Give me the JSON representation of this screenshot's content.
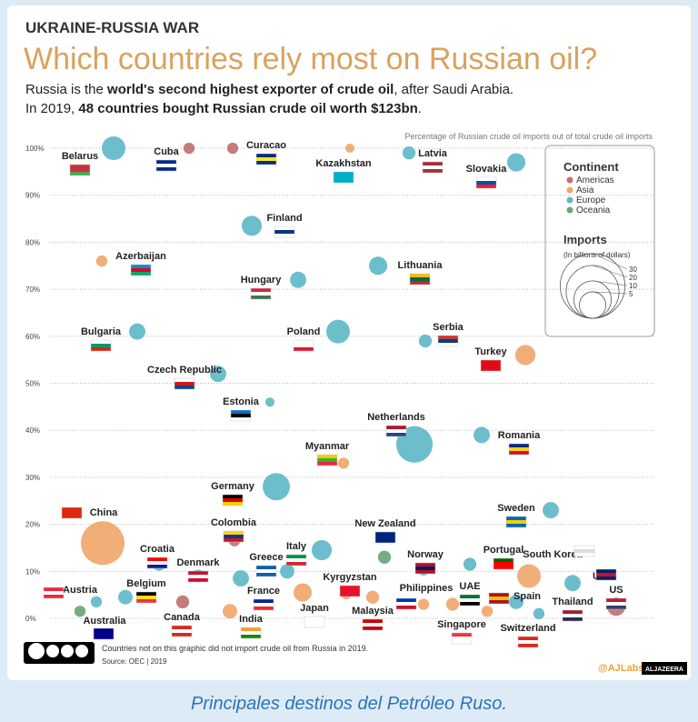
{
  "chart_data": {
    "type": "bubble",
    "kicker": "UKRAINE-RUSSIA WAR",
    "title": "Which countries rely most on Russian oil?",
    "subtitle_lines": [
      [
        {
          "text": "Russia is the "
        },
        {
          "text": "world's second highest exporter of crude oil",
          "bold": true
        },
        {
          "text": ", after Saudi Arabia."
        }
      ],
      [
        {
          "text": "In 2019, "
        },
        {
          "text": "48 countries bought Russian crude oil worth $123bn",
          "bold": true
        },
        {
          "text": "."
        }
      ]
    ],
    "y_axis_note": "Percentage of Russian crude oil imports out of total crude oil imports",
    "ylim": [
      0,
      100
    ],
    "yticks": [
      {
        "value": 0,
        "label": "0%"
      },
      {
        "value": 10,
        "label": "10%"
      },
      {
        "value": 20,
        "label": "20%"
      },
      {
        "value": 30,
        "label": "30%"
      },
      {
        "value": 40,
        "label": "40%"
      },
      {
        "value": 50,
        "label": "50%"
      },
      {
        "value": 60,
        "label": "60%"
      },
      {
        "value": 70,
        "label": "70%"
      },
      {
        "value": 80,
        "label": "80%"
      },
      {
        "value": 90,
        "label": "90%"
      },
      {
        "value": 100,
        "label": "100%"
      }
    ],
    "grid": true,
    "legend_title": "Continent",
    "series": [
      {
        "name": "Americas",
        "color": "#c0716f",
        "countries": [
          "Cuba",
          "Curacao",
          "Colombia",
          "Canada",
          "US"
        ],
        "values": [
          100,
          100,
          16.5,
          3.5,
          2.5
        ],
        "sizes": [
          0.9,
          0.9,
          0.9,
          1.2,
          2.4
        ]
      },
      {
        "name": "Asia",
        "color": "#f0a76b",
        "countries": [
          "Kazakhstan",
          "Azerbaijan",
          "Turkey",
          "Myanmar",
          "China",
          "South Korea",
          "Kyrgyzstan",
          "Japan",
          "Philippines",
          "UAE",
          "India",
          "Malaysia",
          "Singapore",
          "Thailand"
        ],
        "values": [
          100,
          76,
          56,
          33,
          16,
          9,
          5,
          5.5,
          3,
          3,
          1.5,
          4.5,
          1.5,
          0.5
        ],
        "sizes": [
          0.6,
          0.9,
          2.9,
          0.9,
          13.6,
          4.0,
          0.6,
          2.4,
          0.9,
          1.2,
          1.5,
          1.2,
          0.9,
          0.9
        ]
      },
      {
        "name": "Europe",
        "color": "#5fb8c8",
        "countries": [
          "Belarus",
          "Latvia",
          "Slovakia",
          "Finland",
          "Lithuania",
          "Hungary",
          "Bulgaria",
          "Poland",
          "Serbia",
          "Czech Republic",
          "Estonia",
          "Netherlands",
          "Romania",
          "Germany",
          "Croatia",
          "Italy",
          "Sweden",
          "Denmark",
          "Greece",
          "Norway",
          "Portugal",
          "Belgium",
          "Austria",
          "France",
          "Spain",
          "UK",
          "Switzerland"
        ],
        "values": [
          100,
          99,
          97,
          83.5,
          75,
          72,
          61,
          61,
          59,
          52,
          46,
          37,
          39,
          28,
          11.5,
          14.5,
          23,
          9,
          10,
          10.5,
          11.5,
          4.5,
          3.5,
          8.5,
          3.5,
          7.5,
          1
        ],
        "sizes": [
          4.0,
          1.2,
          2.4,
          2.9,
          2.4,
          1.9,
          1.9,
          4.0,
          1.2,
          1.9,
          0.6,
          9.5,
          1.9,
          5.3,
          1.2,
          2.9,
          1.9,
          1.2,
          1.5,
          1.2,
          1.2,
          1.5,
          0.9,
          1.9,
          1.5,
          1.9,
          0.9
        ]
      },
      {
        "name": "Oceania",
        "color": "#6aa57a",
        "countries": [
          "New Zealand",
          "Australia"
        ],
        "values": [
          13,
          1.5
        ],
        "sizes": [
          1.2,
          0.9
        ]
      }
    ],
    "size_legend": {
      "title": "Imports",
      "subtitle": "(In billions of dollars)",
      "values": [
        30,
        20,
        10,
        5
      ]
    },
    "footnote": "Countries not on this graphic did not import crude oil from Russia in 2019.",
    "source": "Source: OEC | 2019",
    "credit": "@AJLabs",
    "brand": "ALJAZEERA",
    "caption": "Principales destinos del Petróleo Ruso."
  }
}
